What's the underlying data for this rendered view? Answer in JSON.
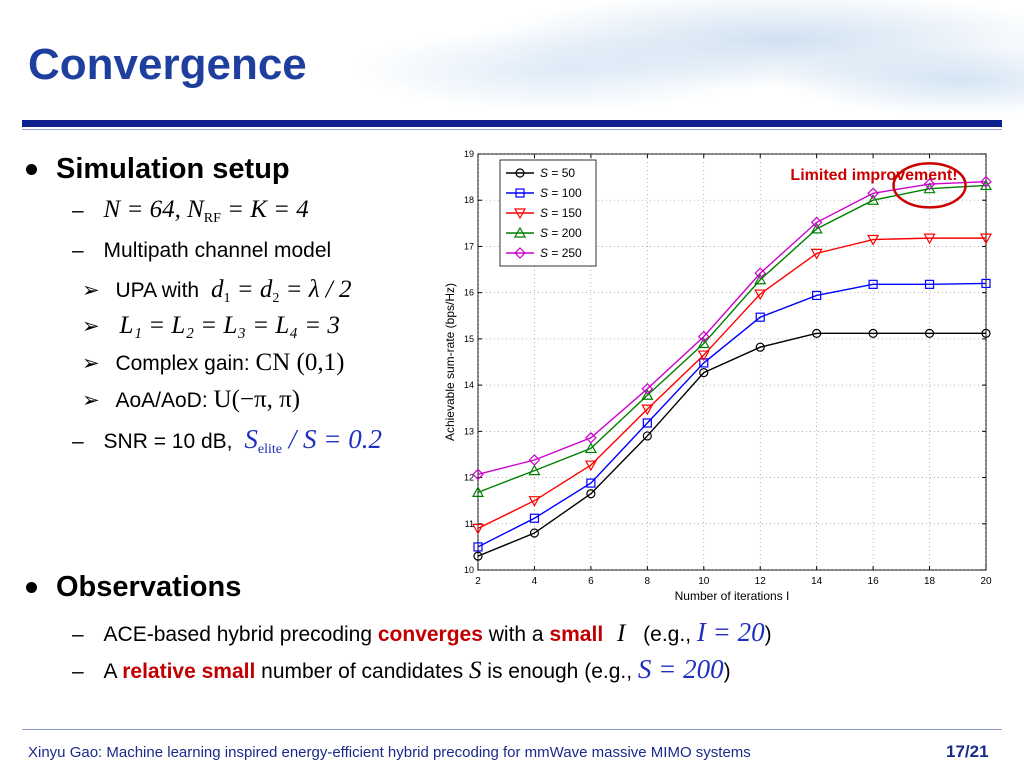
{
  "slide": {
    "title": "Convergence",
    "setup_heading": "Simulation setup",
    "setup": {
      "n_params": "N = 64,  N",
      "n_rf_sub": "RF",
      "n_params_tail": " = K = 4",
      "multipath": "Multipath channel model",
      "upa_prefix": "UPA with",
      "upa_eq_d1": "d",
      "upa_eq_d1_sub": "1",
      "upa_eq_mid": " = d",
      "upa_eq_d2_sub": "2",
      "upa_eq_tail": " = λ / 2",
      "paths_eq": "L₁ = L₂ = L₃ = L₄ = 3",
      "gain_prefix": "Complex gain:",
      "gain_eq": "CN (0,1)",
      "aoa_prefix": "AoA/AoD:",
      "aoa_eq": "U(−π, π)",
      "snr_prefix": "SNR = 10 dB,",
      "snr_S": "S",
      "snr_sub": "elite",
      "snr_tail": " / S = 0.2"
    },
    "obs_heading": "Observations",
    "obs": {
      "line1_a": "ACE-based hybrid precoding ",
      "line1_b": "converges",
      "line1_c": " with a ",
      "line1_d": "small",
      "line1_I": "I",
      "line1_e": "(e.g.,",
      "line1_eq": "I = 20",
      "line1_f": ")",
      "line2_a": "A ",
      "line2_b": "relative small",
      "line2_c": " number of candidates ",
      "line2_S": "S",
      "line2_d": " is enough (e.g.,",
      "line2_eq": "S = 200",
      "line2_e": ")"
    },
    "footer": "Xinyu Gao: Machine learning inspired energy-efficient hybrid precoding for mmWave massive MIMO systems",
    "page": "17/21",
    "dash": "–",
    "arrow": "➢"
  },
  "colors": {
    "title": "#1f3f9f",
    "rule": "#0d1f8c",
    "annotation": "#cc0000"
  },
  "chart_data": {
    "type": "line",
    "xlabel": "Number of iterations  I",
    "ylabel": "Achievable sum-rate (bps/Hz)",
    "xlim": [
      2,
      20
    ],
    "ylim": [
      10,
      19
    ],
    "xticks": [
      2,
      4,
      6,
      8,
      10,
      12,
      14,
      16,
      18,
      20
    ],
    "yticks": [
      10,
      11,
      12,
      13,
      14,
      15,
      16,
      17,
      18,
      19
    ],
    "grid": true,
    "legend_position": "top-left",
    "annotation": "Limited improvement!",
    "x": [
      2,
      4,
      6,
      8,
      10,
      12,
      14,
      16,
      18,
      20
    ],
    "series": [
      {
        "name": "S = 50",
        "var": "S",
        "val": " = 50",
        "color": "#000000",
        "marker": "circle",
        "values": [
          10.3,
          10.8,
          11.65,
          12.9,
          14.27,
          14.82,
          15.12,
          15.12,
          15.12,
          15.12
        ]
      },
      {
        "name": "S = 100",
        "var": "S",
        "val": " = 100",
        "color": "#0000ff",
        "marker": "square",
        "values": [
          10.5,
          11.12,
          11.88,
          13.18,
          14.48,
          15.47,
          15.94,
          16.18,
          16.18,
          16.2
        ]
      },
      {
        "name": "S = 150",
        "var": "S",
        "val": " = 150",
        "color": "#ff0000",
        "marker": "triangle-down",
        "values": [
          10.9,
          11.5,
          12.27,
          13.48,
          14.65,
          15.97,
          16.85,
          17.15,
          17.18,
          17.18
        ]
      },
      {
        "name": "S = 200",
        "var": "S",
        "val": " = 200",
        "color": "#008000",
        "marker": "triangle-up",
        "values": [
          11.68,
          12.15,
          12.63,
          13.78,
          14.9,
          16.28,
          17.38,
          18.0,
          18.25,
          18.32
        ]
      },
      {
        "name": "S = 250",
        "var": "S",
        "val": " = 250",
        "color": "#cc00cc",
        "marker": "diamond",
        "values": [
          12.07,
          12.38,
          12.86,
          13.92,
          15.05,
          16.42,
          17.52,
          18.15,
          18.35,
          18.4
        ]
      }
    ]
  }
}
